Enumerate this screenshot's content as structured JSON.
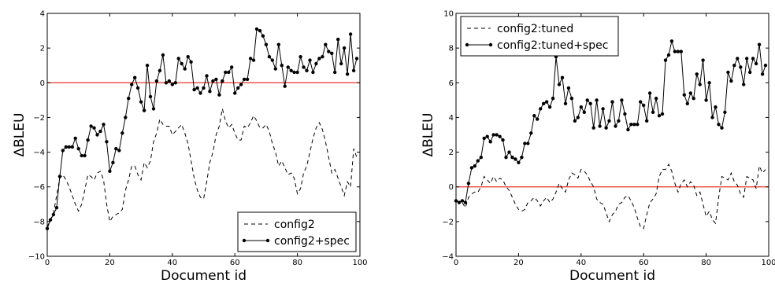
{
  "chart_data": [
    {
      "type": "line",
      "title": "",
      "xlabel": "Document id",
      "ylabel": "ΔBLEU",
      "xlim": [
        0,
        100
      ],
      "ylim": [
        -10,
        4
      ],
      "xticks": [
        0,
        20,
        40,
        60,
        80,
        100
      ],
      "yticks": [
        -10,
        -8,
        -6,
        -4,
        -2,
        0,
        2,
        4
      ],
      "xtick_labels": [
        "0",
        "20",
        "40",
        "60",
        "80",
        "100"
      ],
      "ytick_labels": [
        "−10",
        "−8",
        "−6",
        "−4",
        "−2",
        "0",
        "2",
        "4"
      ],
      "reference_line": {
        "y": 0,
        "color": "#e8302a"
      },
      "legend_position": "lower-right",
      "grid": false,
      "series": [
        {
          "name": "config2",
          "style": "dashed",
          "color": "#000000",
          "markers": false,
          "x": [
            0,
            1,
            2,
            3,
            4,
            5,
            6,
            7,
            8,
            9,
            10,
            11,
            12,
            13,
            14,
            15,
            16,
            17,
            18,
            19,
            20,
            21,
            22,
            23,
            24,
            25,
            26,
            27,
            28,
            29,
            30,
            31,
            32,
            33,
            34,
            35,
            36,
            37,
            38,
            39,
            40,
            41,
            42,
            43,
            44,
            45,
            46,
            47,
            48,
            49,
            50,
            51,
            52,
            53,
            54,
            55,
            56,
            57,
            58,
            59,
            60,
            61,
            62,
            63,
            64,
            65,
            66,
            67,
            68,
            69,
            70,
            71,
            72,
            73,
            74,
            75,
            76,
            77,
            78,
            79,
            80,
            81,
            82,
            83,
            84,
            85,
            86,
            87,
            88,
            89,
            90,
            91,
            92,
            93,
            94,
            95,
            96,
            97,
            98,
            99
          ],
          "y": [
            -8.3,
            -7.9,
            -7.5,
            -6.5,
            -5.5,
            -5.3,
            -5.6,
            -6.0,
            -6.5,
            -7.0,
            -7.4,
            -7.0,
            -6.2,
            -5.3,
            -5.4,
            -5.6,
            -5.2,
            -5.1,
            -5.6,
            -7.0,
            -8.0,
            -7.7,
            -7.6,
            -7.5,
            -7.3,
            -6.2,
            -5.6,
            -4.8,
            -4.8,
            -5.3,
            -5.6,
            -4.6,
            -4.9,
            -4.5,
            -3.4,
            -2.9,
            -2.1,
            -2.4,
            -2.5,
            -2.5,
            -3.0,
            -2.8,
            -2.6,
            -2.4,
            -2.9,
            -3.5,
            -4.5,
            -5.5,
            -6.2,
            -6.6,
            -6.7,
            -5.7,
            -4.6,
            -4.0,
            -3.0,
            -2.5,
            -1.5,
            -2.2,
            -2.6,
            -2.4,
            -2.9,
            -3.3,
            -3.3,
            -2.5,
            -2.6,
            -2.3,
            -1.9,
            -2.2,
            -2.6,
            -2.6,
            -2.4,
            -2.8,
            -3.5,
            -4.0,
            -4.8,
            -4.5,
            -4.9,
            -5.3,
            -5.2,
            -5.5,
            -6.4,
            -6.1,
            -5.2,
            -4.8,
            -4.0,
            -3.2,
            -2.6,
            -2.3,
            -2.7,
            -3.4,
            -4.3,
            -5.2,
            -5.0,
            -5.5,
            -6.0,
            -6.5,
            -5.7,
            -6.0,
            -3.8,
            -4.3
          ]
        },
        {
          "name": "config2+spec",
          "style": "solid",
          "color": "#000000",
          "markers": true,
          "x": [
            0,
            1,
            2,
            3,
            4,
            5,
            6,
            7,
            8,
            9,
            10,
            11,
            12,
            13,
            14,
            15,
            16,
            17,
            18,
            19,
            20,
            21,
            22,
            23,
            24,
            25,
            26,
            27,
            28,
            29,
            30,
            31,
            32,
            33,
            34,
            35,
            36,
            37,
            38,
            39,
            40,
            41,
            42,
            43,
            44,
            45,
            46,
            47,
            48,
            49,
            50,
            51,
            52,
            53,
            54,
            55,
            56,
            57,
            58,
            59,
            60,
            61,
            62,
            63,
            64,
            65,
            66,
            67,
            68,
            69,
            70,
            71,
            72,
            73,
            74,
            75,
            76,
            77,
            78,
            79,
            80,
            81,
            82,
            83,
            84,
            85,
            86,
            87,
            88,
            89,
            90,
            91,
            92,
            93,
            94,
            95,
            96,
            97,
            98,
            99
          ],
          "y": [
            -8.4,
            -7.9,
            -7.6,
            -7.2,
            -5.4,
            -3.9,
            -3.7,
            -3.7,
            -3.7,
            -3.2,
            -3.8,
            -4.2,
            -4.2,
            -3.3,
            -2.5,
            -2.6,
            -3.0,
            -2.8,
            -2.4,
            -3.4,
            -5.1,
            -4.6,
            -3.8,
            -3.9,
            -2.9,
            -2.0,
            -0.9,
            -0.1,
            0.3,
            -0.3,
            -1.1,
            -1.6,
            1.0,
            -0.8,
            -1.5,
            0.1,
            0.7,
            1.6,
            0.0,
            0.1,
            -0.1,
            0.0,
            1.4,
            1.1,
            0.8,
            1.5,
            1.2,
            -0.4,
            -0.3,
            -0.6,
            -0.3,
            0.4,
            -0.5,
            0.1,
            0.2,
            -0.7,
            0.1,
            0.6,
            0.6,
            0.9,
            -0.6,
            -0.3,
            -0.1,
            0.2,
            0.2,
            1.4,
            1.3,
            3.1,
            3.0,
            2.7,
            2.2,
            1.5,
            1.3,
            0.8,
            2.2,
            1.0,
            -0.2,
            0.9,
            0.7,
            0.6,
            0.6,
            1.5,
            0.9,
            0.7,
            1.3,
            0.6,
            1.1,
            1.4,
            1.5,
            2.2,
            1.8,
            1.7,
            0.6,
            2.5,
            1.1,
            2.0,
            0.5,
            2.8,
            0.7,
            1.4
          ]
        }
      ]
    },
    {
      "type": "line",
      "title": "",
      "xlabel": "Document id",
      "ylabel": "ΔBLEU",
      "xlim": [
        0,
        100
      ],
      "ylim": [
        -4,
        10
      ],
      "xticks": [
        0,
        20,
        40,
        60,
        80,
        100
      ],
      "yticks": [
        -4,
        -2,
        0,
        2,
        4,
        6,
        8,
        10
      ],
      "xtick_labels": [
        "0",
        "20",
        "40",
        "60",
        "80",
        "100"
      ],
      "ytick_labels": [
        "−4",
        "−2",
        "0",
        "2",
        "4",
        "6",
        "8",
        "10"
      ],
      "reference_line": {
        "y": 0,
        "color": "#e8302a"
      },
      "legend_position": "top-left",
      "grid": false,
      "series": [
        {
          "name": "config2:tuned",
          "style": "dashed",
          "color": "#000000",
          "markers": false,
          "x": [
            0,
            1,
            2,
            3,
            4,
            5,
            6,
            7,
            8,
            9,
            10,
            11,
            12,
            13,
            14,
            15,
            16,
            17,
            18,
            19,
            20,
            21,
            22,
            23,
            24,
            25,
            26,
            27,
            28,
            29,
            30,
            31,
            32,
            33,
            34,
            35,
            36,
            37,
            38,
            39,
            40,
            41,
            42,
            43,
            44,
            45,
            46,
            47,
            48,
            49,
            50,
            51,
            52,
            53,
            54,
            55,
            56,
            57,
            58,
            59,
            60,
            61,
            62,
            63,
            64,
            65,
            66,
            67,
            68,
            69,
            70,
            71,
            72,
            73,
            74,
            75,
            76,
            77,
            78,
            79,
            80,
            81,
            82,
            83,
            84,
            85,
            86,
            87,
            88,
            89,
            90,
            91,
            92,
            93,
            94,
            95,
            96,
            97,
            98,
            99
          ],
          "y": [
            -0.8,
            -0.9,
            -0.9,
            -1.2,
            -0.6,
            -0.4,
            -0.3,
            -0.3,
            0.0,
            0.6,
            0.4,
            0.2,
            0.6,
            0.3,
            0.5,
            0.4,
            0.0,
            -0.2,
            -0.6,
            -1.0,
            -1.3,
            -1.4,
            -1.3,
            -0.9,
            -0.8,
            -0.6,
            -0.8,
            -1.1,
            -0.8,
            -0.6,
            -0.9,
            -0.7,
            -0.3,
            0.2,
            -0.1,
            -0.3,
            0.4,
            0.8,
            0.7,
            0.5,
            1.0,
            0.9,
            0.7,
            0.3,
            0.0,
            -0.7,
            -0.9,
            -1.0,
            -1.5,
            -2.0,
            -1.6,
            -1.4,
            -1.0,
            -0.9,
            -0.6,
            -0.5,
            -0.8,
            -1.2,
            -1.8,
            -2.3,
            -2.4,
            -1.6,
            -0.9,
            -0.7,
            -0.4,
            0.6,
            1.0,
            1.0,
            1.3,
            0.9,
            0.2,
            -0.3,
            0.2,
            0.4,
            0.0,
            0.3,
            0.1,
            -0.5,
            -0.3,
            -1.0,
            -1.7,
            -1.4,
            -1.9,
            -2.1,
            -0.6,
            0.6,
            0.5,
            0.4,
            0.8,
            0.3,
            0.1,
            -0.4,
            -0.6,
            0.6,
            0.5,
            0.4,
            -0.1,
            1.2,
            0.8,
            1.0
          ]
        },
        {
          "name": "config2:tuned+spec",
          "style": "solid",
          "color": "#000000",
          "markers": true,
          "x": [
            0,
            1,
            2,
            3,
            4,
            5,
            6,
            7,
            8,
            9,
            10,
            11,
            12,
            13,
            14,
            15,
            16,
            17,
            18,
            19,
            20,
            21,
            22,
            23,
            24,
            25,
            26,
            27,
            28,
            29,
            30,
            31,
            32,
            33,
            34,
            35,
            36,
            37,
            38,
            39,
            40,
            41,
            42,
            43,
            44,
            45,
            46,
            47,
            48,
            49,
            50,
            51,
            52,
            53,
            54,
            55,
            56,
            57,
            58,
            59,
            60,
            61,
            62,
            63,
            64,
            65,
            66,
            67,
            68,
            69,
            70,
            71,
            72,
            73,
            74,
            75,
            76,
            77,
            78,
            79,
            80,
            81,
            82,
            83,
            84,
            85,
            86,
            87,
            88,
            89,
            90,
            91,
            92,
            93,
            94,
            95,
            96,
            97,
            98,
            99
          ],
          "y": [
            -0.8,
            -0.9,
            -0.8,
            -0.9,
            0.2,
            1.1,
            1.2,
            1.5,
            1.7,
            2.8,
            2.9,
            2.6,
            3.0,
            3.0,
            2.9,
            2.7,
            1.7,
            2.0,
            1.7,
            1.6,
            1.4,
            1.7,
            2.5,
            2.5,
            3.1,
            4.1,
            3.9,
            4.5,
            4.8,
            4.9,
            4.6,
            5.1,
            7.5,
            5.9,
            6.3,
            4.8,
            5.7,
            5.1,
            3.8,
            4.0,
            4.6,
            4.3,
            5.0,
            4.8,
            3.4,
            5.0,
            3.5,
            4.5,
            3.4,
            3.8,
            4.9,
            3.5,
            3.8,
            5.0,
            4.2,
            3.3,
            3.6,
            3.6,
            3.6,
            4.9,
            4.7,
            3.8,
            5.4,
            4.3,
            5.1,
            4.1,
            4.2,
            7.3,
            7.6,
            8.4,
            7.8,
            7.8,
            7.8,
            5.3,
            4.8,
            5.4,
            5.1,
            6.5,
            5.9,
            7.3,
            5.0,
            6.0,
            4.0,
            4.6,
            3.6,
            3.4,
            4.3,
            6.6,
            6.1,
            7.0,
            7.4,
            6.9,
            5.9,
            7.4,
            6.6,
            7.4,
            7.1,
            8.2,
            6.5,
            7.0
          ]
        }
      ]
    }
  ]
}
